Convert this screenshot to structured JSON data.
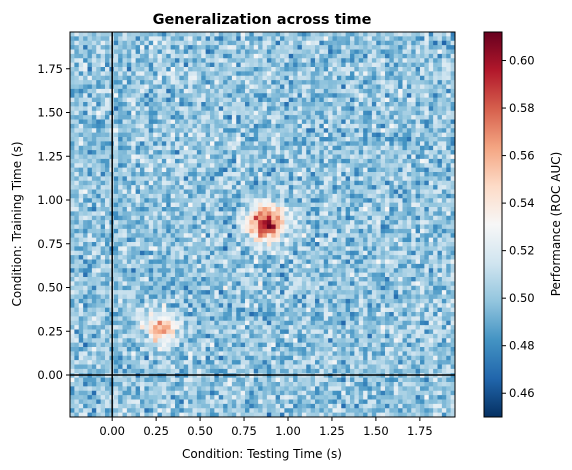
{
  "chart_data": {
    "type": "heatmap",
    "title": "Generalization across time",
    "xlabel": "Condition: Testing Time (s)",
    "ylabel": "Condition: Training Time (s)",
    "xlim": [
      -0.24,
      1.95
    ],
    "ylim": [
      -0.24,
      1.96
    ],
    "xticks": [
      0.0,
      0.25,
      0.5,
      0.75,
      1.0,
      1.25,
      1.5,
      1.75
    ],
    "xtick_labels": [
      "0.00",
      "0.25",
      "0.50",
      "0.75",
      "1.00",
      "1.25",
      "1.50",
      "1.75"
    ],
    "yticks": [
      0.0,
      0.25,
      0.5,
      0.75,
      1.0,
      1.25,
      1.5,
      1.75
    ],
    "ytick_labels": [
      "0.00",
      "0.25",
      "0.50",
      "0.75",
      "1.00",
      "1.25",
      "1.50",
      "1.75"
    ],
    "grid_resolution": [
      88,
      88
    ],
    "baseline_value": 0.5,
    "noise_amplitude": 0.015,
    "peaks": [
      {
        "x": 0.88,
        "y": 0.87,
        "sigma": 0.07,
        "peak_value": 0.6
      },
      {
        "x": 0.28,
        "y": 0.27,
        "sigma": 0.06,
        "peak_value": 0.567
      }
    ],
    "reference_lines": {
      "x": 0.0,
      "y": 0.0,
      "color": "#000000"
    },
    "colormap": "RdBu_r",
    "colormap_stops": [
      "#053061",
      "#2166ac",
      "#4393c3",
      "#92c5de",
      "#d1e5f0",
      "#f7f7f7",
      "#fddbc7",
      "#f4a582",
      "#d6604d",
      "#b2182b",
      "#67001f"
    ],
    "colorbar": {
      "label": "Performance (ROC AUC)",
      "vmin": 0.45,
      "vmax": 0.612,
      "ticks": [
        0.46,
        0.48,
        0.5,
        0.52,
        0.54,
        0.56,
        0.58,
        0.6
      ],
      "tick_labels": [
        "0.46",
        "0.48",
        "0.50",
        "0.52",
        "0.54",
        "0.56",
        "0.58",
        "0.60"
      ]
    }
  }
}
